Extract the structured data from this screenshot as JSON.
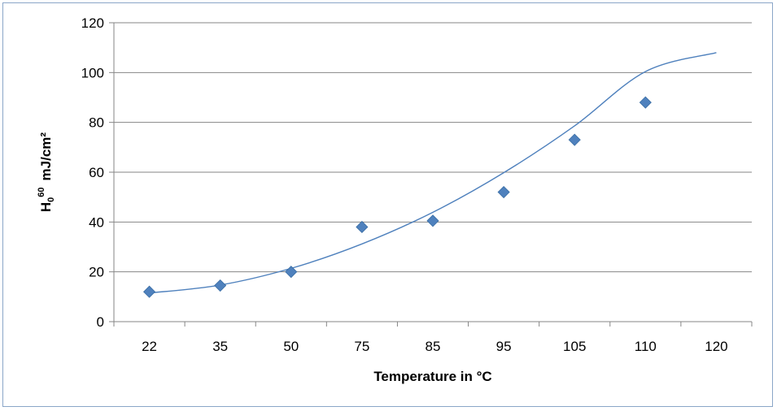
{
  "chart_data": {
    "type": "scatter",
    "categories": [
      "22",
      "35",
      "50",
      "75",
      "85",
      "95",
      "105",
      "110",
      "120"
    ],
    "series": [
      {
        "values": [
          12,
          14.5,
          20,
          38,
          40.5,
          52,
          73,
          88,
          null
        ],
        "color": "#4f81bd"
      }
    ],
    "trendline": {
      "type": "polynomial",
      "fitted": [
        11.5,
        14.7,
        21.4,
        31.2,
        43.9,
        59.8,
        78.6,
        100.4,
        108
      ],
      "color": "#4f81bd"
    },
    "title": "",
    "xlabel": "Temperature in °C",
    "ylabel_main": "H",
    "ylabel_sub": "0",
    "ylabel_sup": "60",
    "ylabel_unit": "mJ/cm²",
    "ylim": [
      0,
      120
    ],
    "yticks": [
      "0",
      "20",
      "40",
      "60",
      "80",
      "100",
      "120"
    ],
    "grid": true,
    "legend": "none"
  }
}
